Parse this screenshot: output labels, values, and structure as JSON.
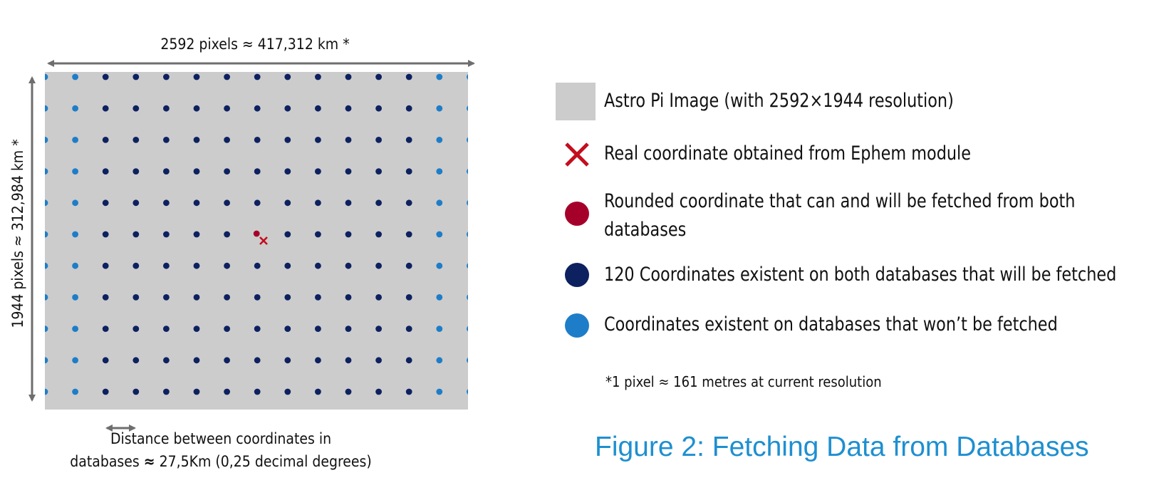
{
  "figure": {
    "width_label": "2592 pixels ≈ 417,312 km *",
    "height_label": "1944 pixels ≈ 312,984 km *",
    "spacing_label_line1": "Distance between coordinates in",
    "spacing_label_line2_prefix": "databases",
    "spacing_label_line2_approx": "≈",
    "spacing_label_line2_value": "27,5Km (0,25 decimal degrees)",
    "caption": "Figure 2: Fetching Data from Databases",
    "footnote": "*1 pixel ≈ 161 metres at current resolution"
  },
  "grid": {
    "columns": 15,
    "rows": 11,
    "edge_columns_fetched": false,
    "rounded_point": {
      "column": 7,
      "row": 5
    },
    "fetched_count_text": "120"
  },
  "legend": [
    {
      "symbol": "gray-square-icon",
      "label": "Astro Pi Image (with 2592×1944 resolution)"
    },
    {
      "symbol": "red-cross-icon",
      "label": "Real coordinate obtained from Ephem module"
    },
    {
      "symbol": "red-dot-icon",
      "label_line1": "Rounded coordinate that can and will be fetched from both",
      "label_line2": "databases"
    },
    {
      "symbol": "navy-dot-icon",
      "label": "120 Coordinates existent on both databases that will be fetched"
    },
    {
      "symbol": "blue-dot-icon",
      "label": "Coordinates existent on databases that won’t be fetched"
    }
  ],
  "colors": {
    "image_gray": "#cccccc",
    "real_coordinate_red": "#c40d1e",
    "rounded_coordinate_red": "#a5002a",
    "fetched_navy": "#0d2160",
    "not_fetched_blue": "#1e7dc8",
    "arrow_gray": "#6e6e6e",
    "caption_blue": "#1e8fd0"
  }
}
